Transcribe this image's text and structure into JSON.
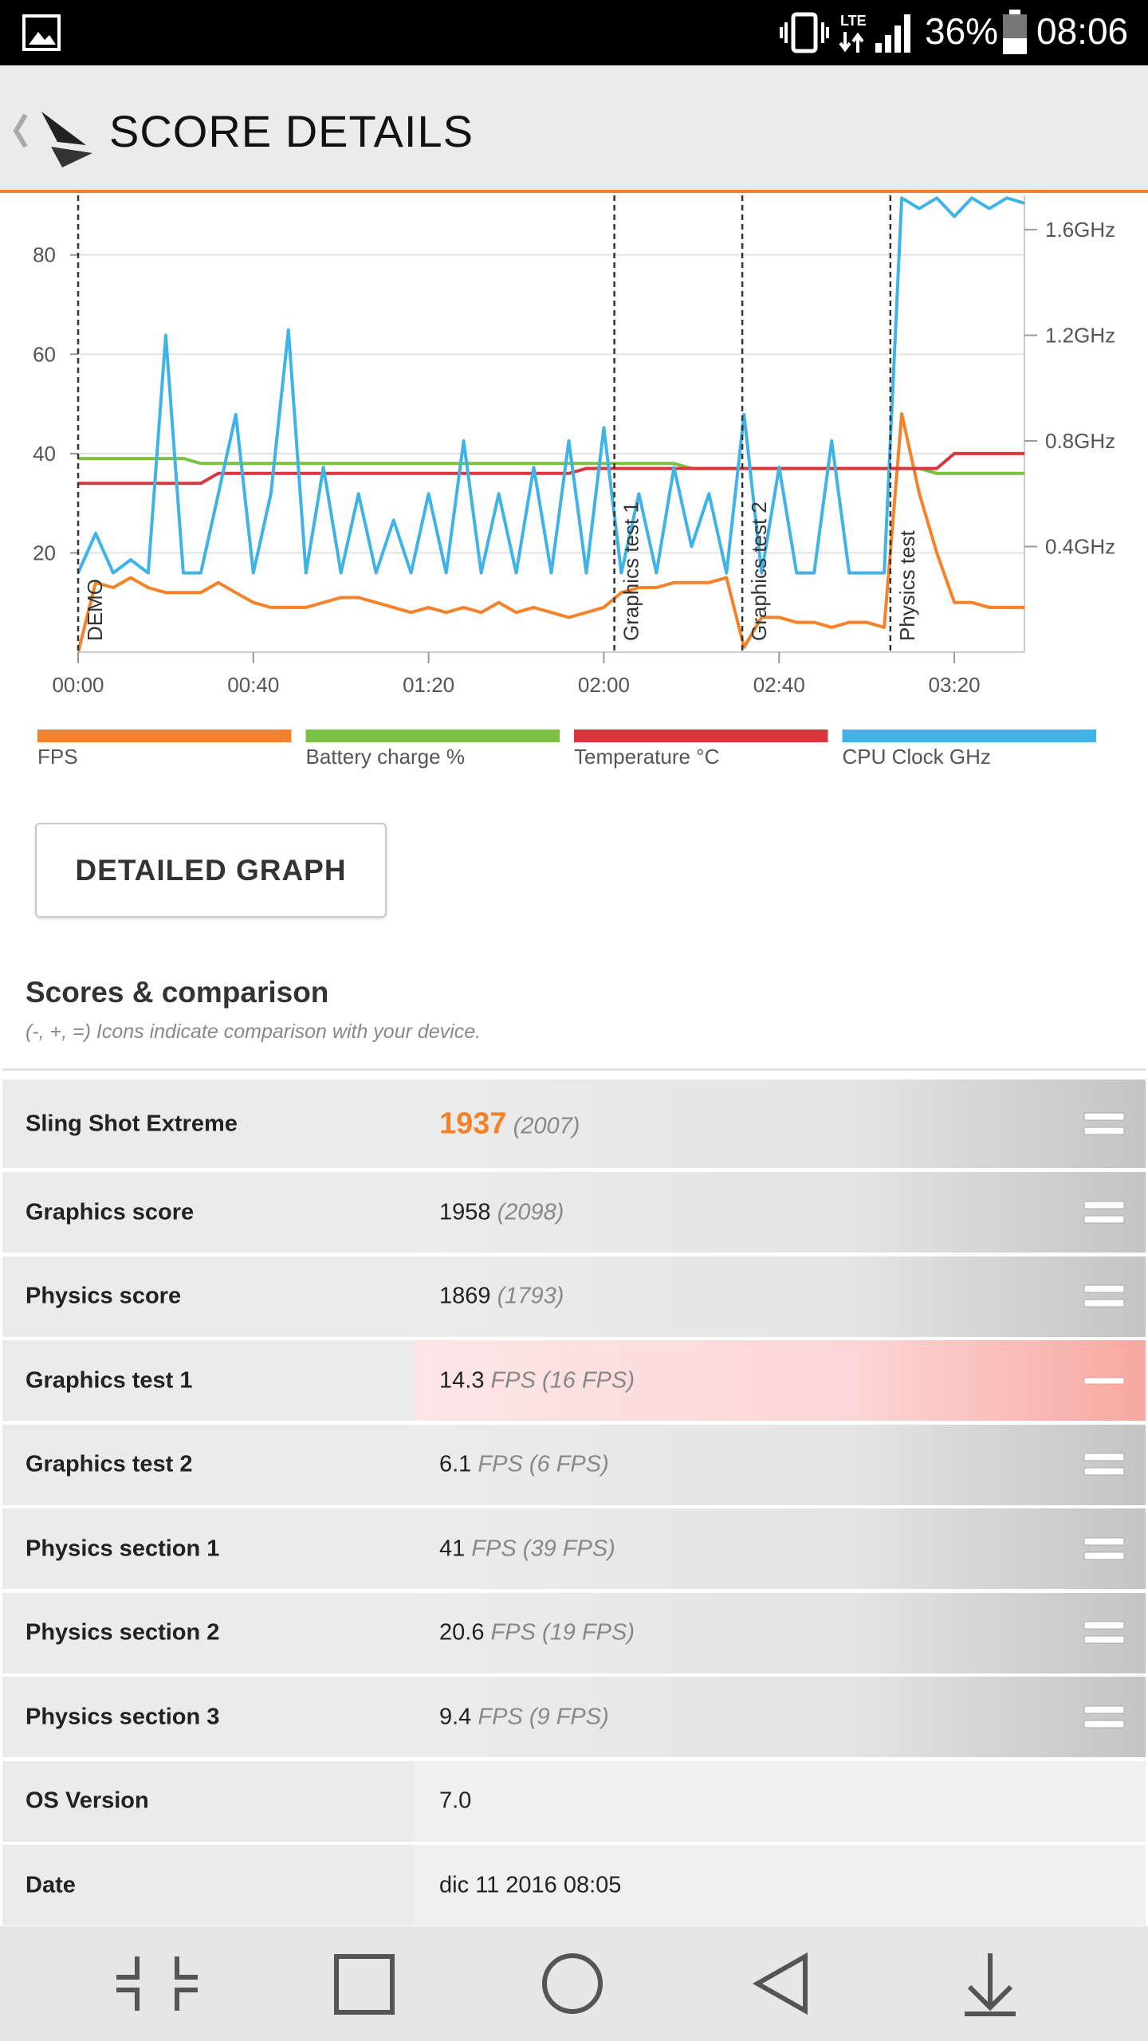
{
  "status_bar": {
    "network": "LTE",
    "battery": "36%",
    "time": "08:06"
  },
  "header": {
    "title": "SCORE DETAILS"
  },
  "chart_data": {
    "type": "line",
    "x": [
      0,
      4,
      8,
      12,
      16,
      20,
      24,
      28,
      32,
      36,
      40,
      44,
      48,
      52,
      56,
      60,
      64,
      68,
      72,
      76,
      80,
      84,
      88,
      92,
      96,
      100,
      104,
      108,
      112,
      116,
      120,
      124,
      128,
      132,
      136,
      140,
      144,
      148,
      152,
      156,
      160,
      164,
      168,
      172,
      176,
      180,
      184,
      188,
      192,
      196,
      200,
      204,
      208,
      212,
      216
    ],
    "xlim": [
      0,
      216
    ],
    "xticks": [
      {
        "value": 0,
        "label": "00:00"
      },
      {
        "value": 40,
        "label": "00:40"
      },
      {
        "value": 80,
        "label": "01:20"
      },
      {
        "value": 120,
        "label": "02:00"
      },
      {
        "value": 160,
        "label": "02:40"
      },
      {
        "value": 200,
        "label": "03:20"
      }
    ],
    "ylim": [
      0,
      92
    ],
    "yticks": [
      20,
      40,
      60,
      80
    ],
    "y2lim": [
      0,
      1.73
    ],
    "y2ticks": [
      {
        "value": 0.4,
        "label": "0.4GHz"
      },
      {
        "value": 0.8,
        "label": "0.8GHz"
      },
      {
        "value": 1.2,
        "label": "1.2GHz"
      },
      {
        "value": 1.6,
        "label": "1.6GHz"
      }
    ],
    "grid": true,
    "series": [
      {
        "name": "FPS",
        "color": "#f5822a",
        "values": [
          0,
          14,
          13,
          15,
          13,
          12,
          12,
          12,
          14,
          12,
          10,
          9,
          9,
          9,
          10,
          11,
          11,
          10,
          9,
          8,
          9,
          8,
          9,
          8,
          10,
          8,
          9,
          8,
          7,
          8,
          9,
          12,
          13,
          13,
          14,
          14,
          14,
          15,
          1,
          7,
          7,
          6,
          6,
          5,
          6,
          6,
          5,
          48,
          32,
          20,
          10,
          10,
          9,
          9,
          9
        ]
      },
      {
        "name": "Battery charge %",
        "color": "#7cc242",
        "values": [
          39,
          39,
          39,
          39,
          39,
          39,
          39,
          38,
          38,
          38,
          38,
          38,
          38,
          38,
          38,
          38,
          38,
          38,
          38,
          38,
          38,
          38,
          38,
          38,
          38,
          38,
          38,
          38,
          38,
          38,
          38,
          38,
          38,
          38,
          38,
          37,
          37,
          37,
          37,
          37,
          37,
          37,
          37,
          37,
          37,
          37,
          37,
          37,
          37,
          36,
          36,
          36,
          36,
          36,
          36
        ]
      },
      {
        "name": "Temperature °C",
        "color": "#d9363e",
        "values": [
          34,
          34,
          34,
          34,
          34,
          34,
          34,
          34,
          36,
          36,
          36,
          36,
          36,
          36,
          36,
          36,
          36,
          36,
          36,
          36,
          36,
          36,
          36,
          36,
          36,
          36,
          36,
          36,
          36,
          37,
          37,
          37,
          37,
          37,
          37,
          37,
          37,
          37,
          37,
          37,
          37,
          37,
          37,
          37,
          37,
          37,
          37,
          37,
          37,
          37,
          40,
          40,
          40,
          40,
          40
        ]
      },
      {
        "name": "CPU Clock GHz",
        "color": "#3fb3e8",
        "axis": "y2",
        "values": [
          0.3,
          0.45,
          0.3,
          0.35,
          0.3,
          1.2,
          0.3,
          0.3,
          0.6,
          0.9,
          0.3,
          0.6,
          1.22,
          0.3,
          0.7,
          0.3,
          0.6,
          0.3,
          0.5,
          0.3,
          0.6,
          0.3,
          0.8,
          0.3,
          0.6,
          0.3,
          0.7,
          0.3,
          0.8,
          0.3,
          0.85,
          0.3,
          0.6,
          0.3,
          0.7,
          0.4,
          0.6,
          0.3,
          0.9,
          0.3,
          0.7,
          0.3,
          0.3,
          0.8,
          0.3,
          0.3,
          0.3,
          1.72,
          1.68,
          1.72,
          1.65,
          1.72,
          1.68,
          1.72,
          1.7
        ]
      }
    ],
    "annotations": [
      {
        "x": 0,
        "label": "DEMO"
      },
      {
        "x": 122.4,
        "label": "Graphics test 1"
      },
      {
        "x": 151.6,
        "label": "Graphics test 2"
      },
      {
        "x": 185.4,
        "label": "Physics test"
      }
    ]
  },
  "button": {
    "label": "DETAILED GRAPH"
  },
  "scores": {
    "title": "Scores & comparison",
    "subtitle": "(-, +, =) Icons indicate comparison with your device.",
    "rows": [
      {
        "label": "Sling Shot Extreme",
        "value": "1937",
        "comparison": "(2007)"
      },
      {
        "label": "Graphics score",
        "value": "1958",
        "comparison": "(2098)"
      },
      {
        "label": "Physics score",
        "value": "1869",
        "comparison": "(1793)"
      },
      {
        "label": "Graphics test 1",
        "value": "14.3",
        "unit": "FPS",
        "comparison": "(16 FPS)"
      },
      {
        "label": "Graphics test 2",
        "value": "6.1",
        "unit": "FPS",
        "comparison": "(6 FPS)"
      },
      {
        "label": "Physics section 1",
        "value": "41",
        "unit": "FPS",
        "comparison": "(39 FPS)"
      },
      {
        "label": "Physics section 2",
        "value": "20.6",
        "unit": "FPS",
        "comparison": "(19 FPS)"
      },
      {
        "label": "Physics section 3",
        "value": "9.4",
        "unit": "FPS",
        "comparison": "(9 FPS)"
      },
      {
        "label": "OS Version",
        "value": "7.0"
      },
      {
        "label": "Date",
        "value": "dic 11 2016 08:05"
      }
    ]
  }
}
